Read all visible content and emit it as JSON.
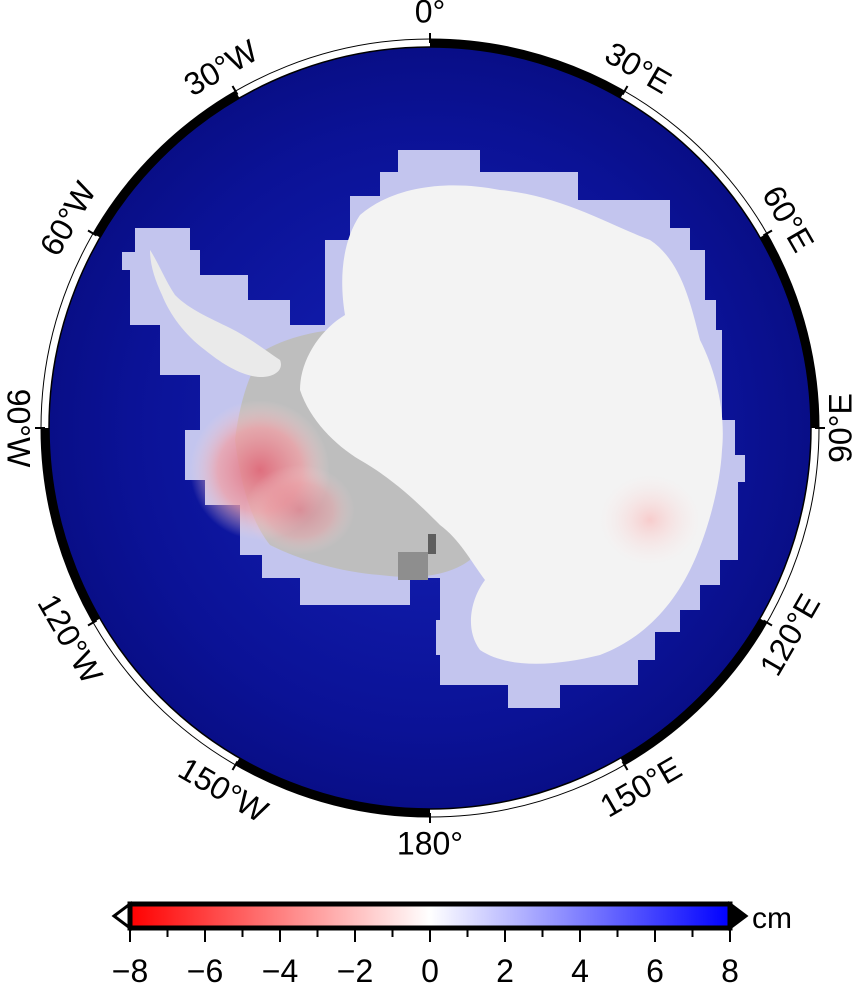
{
  "map": {
    "projection": "south-polar-stereographic",
    "longitude_labels": [
      "0°",
      "30°E",
      "60°E",
      "90°E",
      "120°E",
      "150°E",
      "180°",
      "150°W",
      "120°W",
      "90°W",
      "60°W",
      "30°W"
    ],
    "colors": {
      "ocean": "#0a0f96",
      "ice": "#f2f2f2",
      "ice_shadow": "#bdbdbd",
      "grid_cells": "#c7c9ef",
      "negative": "#ff0000",
      "zero": "#ffffff",
      "positive": "#0000ff"
    }
  },
  "colorbar": {
    "unit": "cm",
    "min": -8,
    "max": 8,
    "tick_labels": [
      "−8",
      "−6",
      "−4",
      "−2",
      "0",
      "2",
      "4",
      "6",
      "8"
    ],
    "colors": [
      "#ff0000",
      "#ffffff",
      "#0000ff"
    ]
  }
}
